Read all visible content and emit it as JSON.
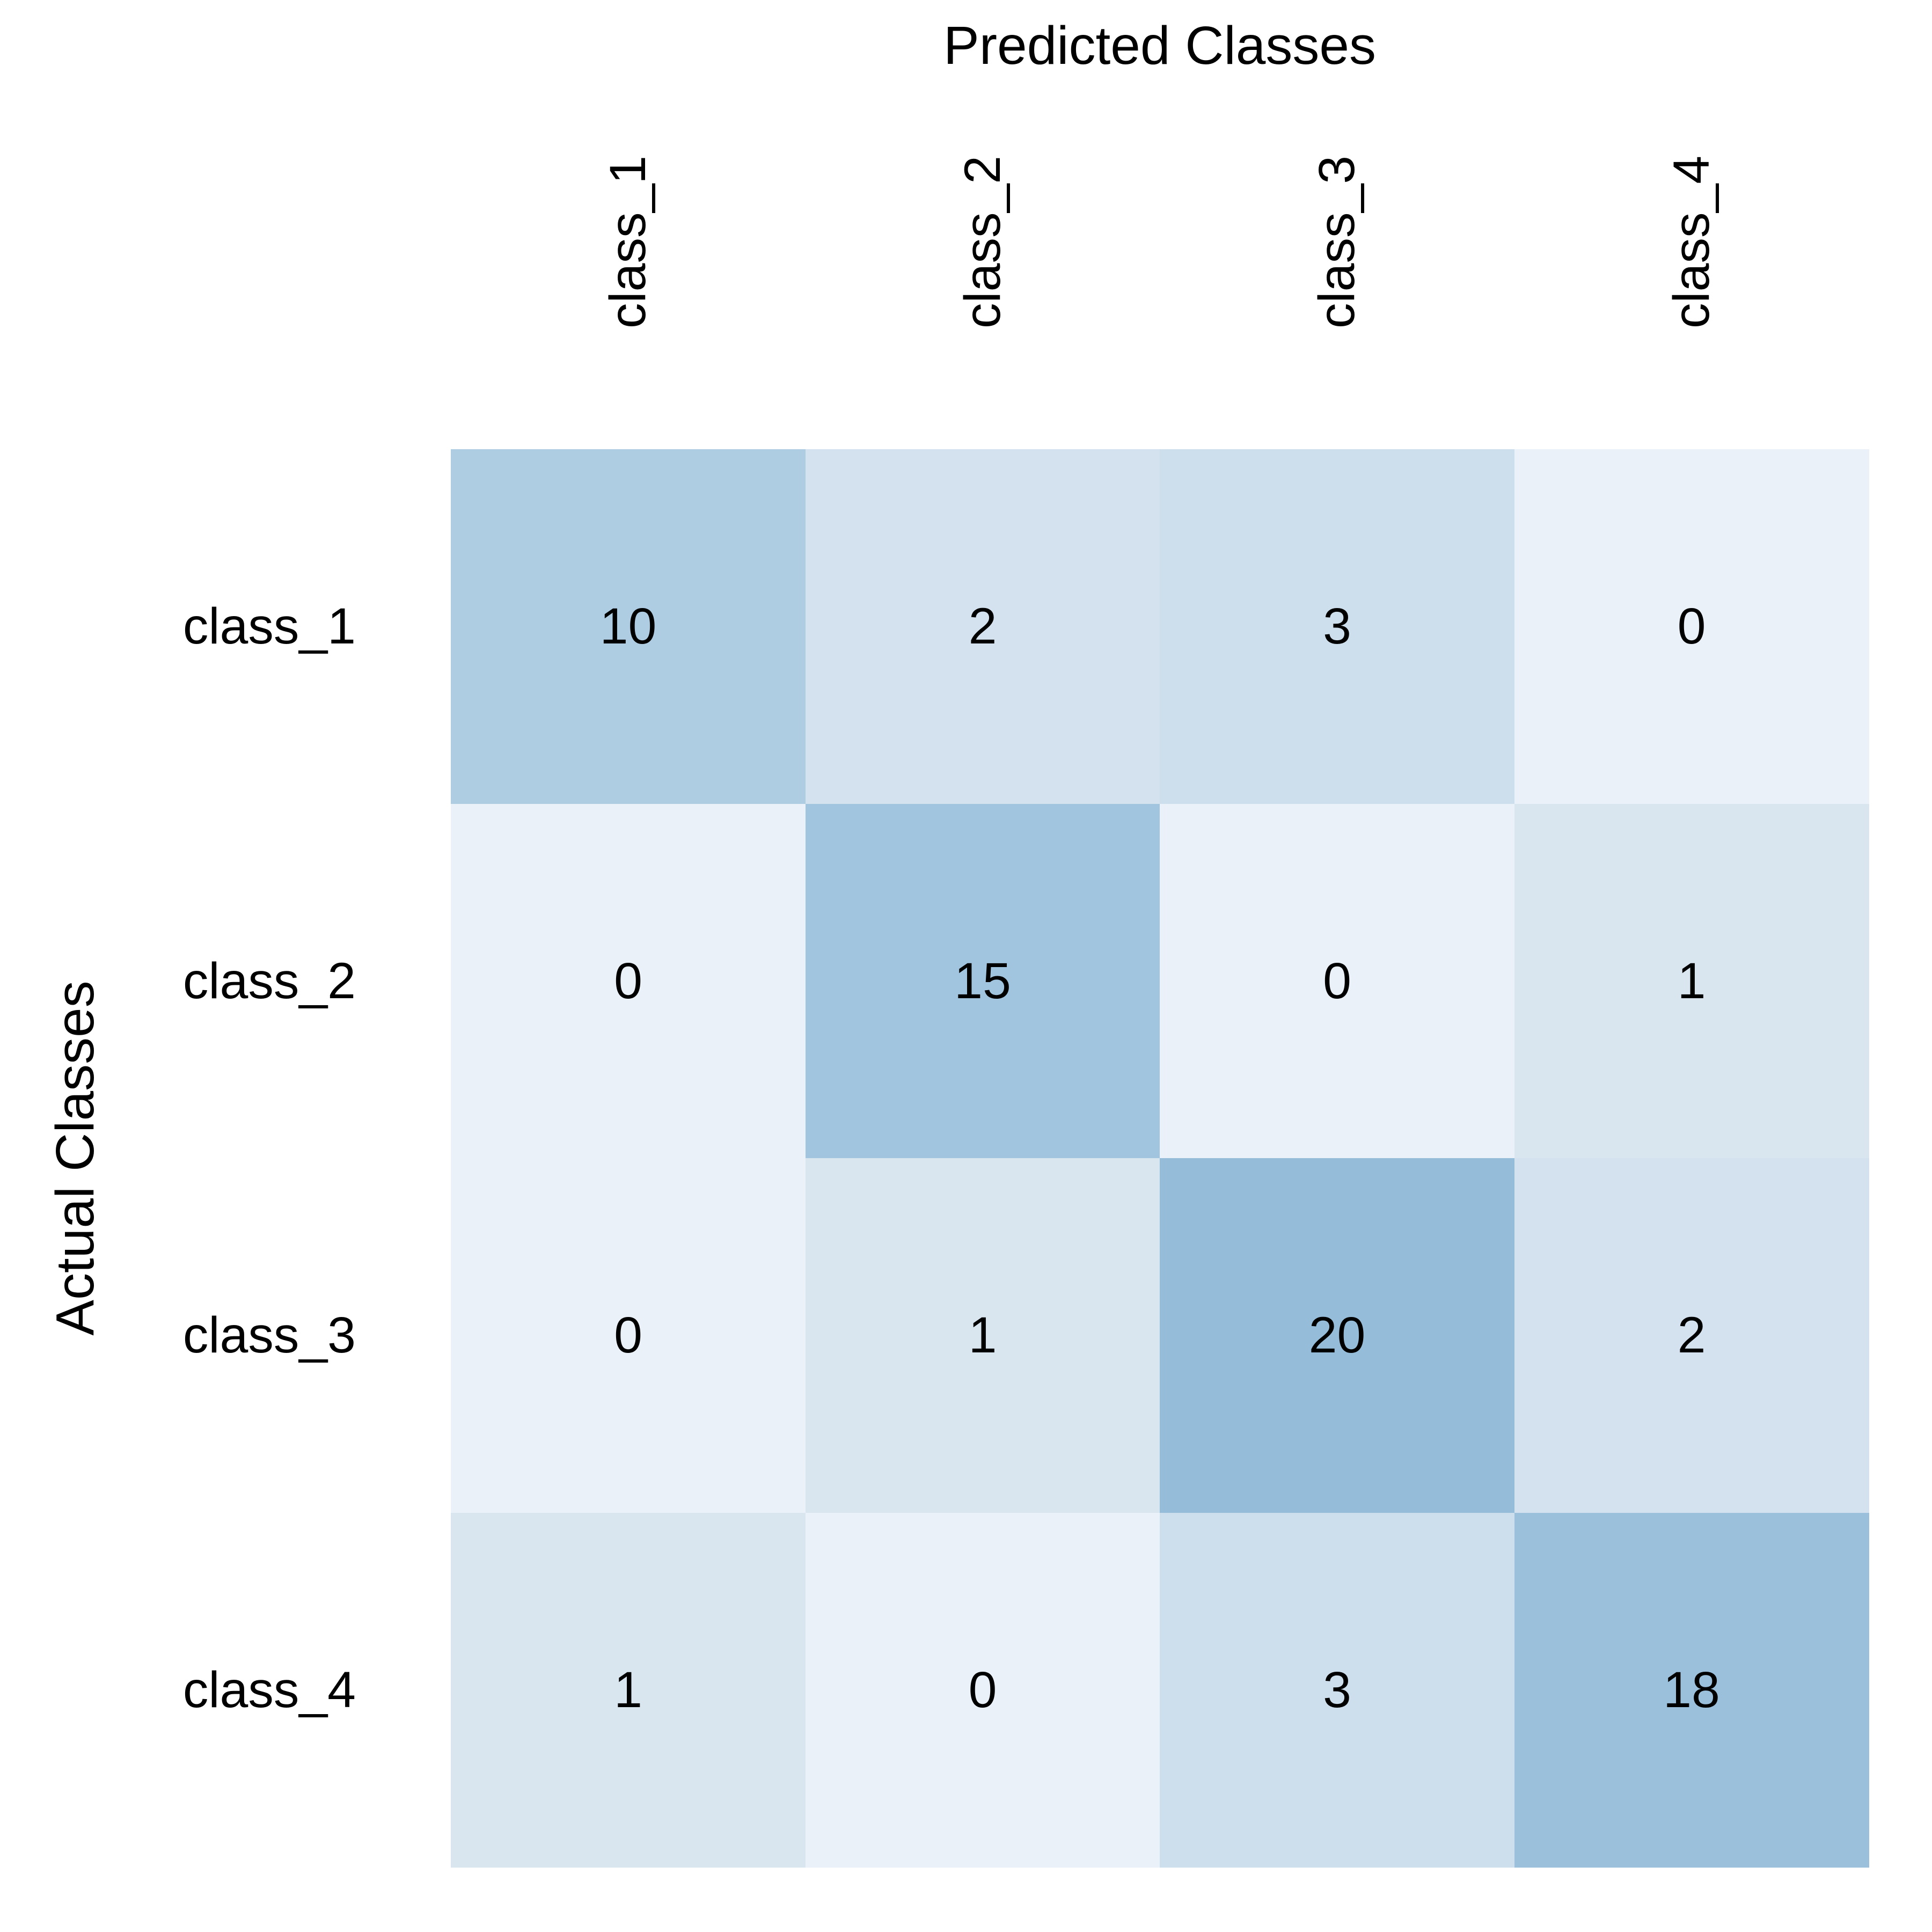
{
  "title": "Predicted Classes",
  "y_axis_title": "Actual Classes",
  "columns": [
    "class_1",
    "class_2",
    "class_3",
    "class_4"
  ],
  "rows": [
    "class_1",
    "class_2",
    "class_3",
    "class_4"
  ],
  "matrix": [
    [
      10,
      2,
      3,
      0
    ],
    [
      0,
      15,
      0,
      1
    ],
    [
      0,
      1,
      20,
      2
    ],
    [
      1,
      0,
      3,
      18
    ]
  ],
  "value_colors": {
    "0": "#eaf1f8",
    "1": "#d9e6f0",
    "2": "#d3e2ee",
    "3": "#cddfec",
    "10": "#aecde3",
    "15": "#a1c5de",
    "18": "#9ac0dc",
    "20": "#95bdda"
  },
  "text_color": "#000000",
  "background_color": "#ffffff",
  "chart_data": {
    "type": "heatmap",
    "subtype": "confusion-matrix",
    "title": "",
    "xlabel": "Predicted Classes",
    "ylabel": "Actual Classes",
    "x_tick_labels": [
      "class_1",
      "class_2",
      "class_3",
      "class_4"
    ],
    "y_tick_labels": [
      "class_1",
      "class_2",
      "class_3",
      "class_4"
    ],
    "x_tick_rotation_degrees": 90,
    "values": [
      [
        10,
        2,
        3,
        0
      ],
      [
        0,
        15,
        0,
        1
      ],
      [
        0,
        1,
        20,
        2
      ],
      [
        1,
        0,
        3,
        18
      ]
    ],
    "value_range": [
      0,
      20
    ],
    "colormap": "light-blue sequential (low=near-white #eaf1f8, high=steel blue #95bdda)",
    "cell_text_shown": true,
    "grid_lines": false,
    "legend": "none",
    "annotations": []
  }
}
